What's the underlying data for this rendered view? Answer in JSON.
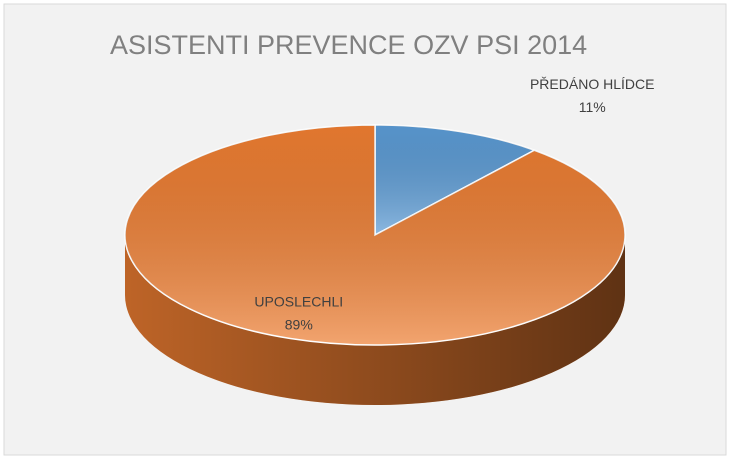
{
  "chart_data": {
    "type": "pie",
    "title": "ASISTENTI PREVENCE OZV PSI 2014",
    "categories": [
      "PŘEDÁNO HLÍDCE",
      "UPOSLECHLI"
    ],
    "values": [
      11,
      89
    ],
    "value_labels": [
      "11%",
      "89%"
    ],
    "colors": [
      "#5b9bd5",
      "#ed7d31"
    ]
  }
}
